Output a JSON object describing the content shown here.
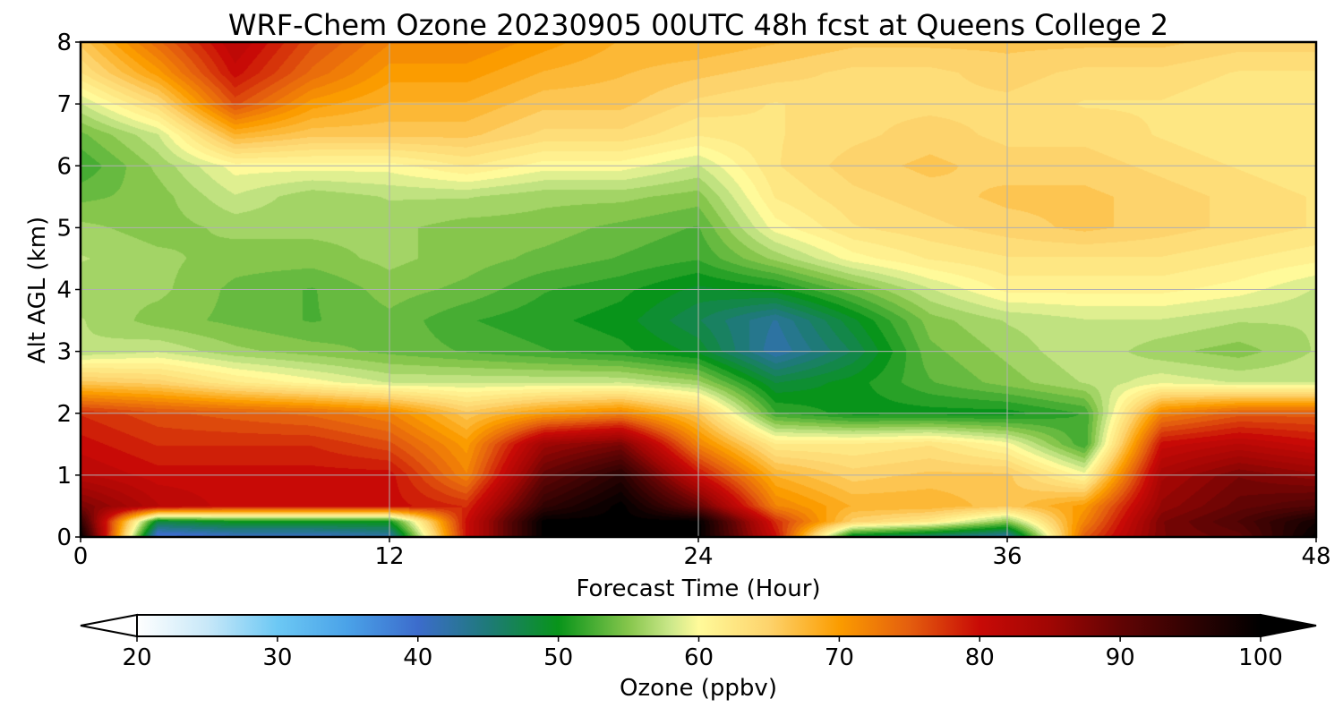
{
  "chart_data": {
    "type": "heatmap",
    "title": "WRF-Chem Ozone  20230905 00UTC 48h fcst at Queens College 2",
    "xlabel": "Forecast Time (Hour)",
    "ylabel": "Alt AGL (km)",
    "xlim": [
      0,
      48
    ],
    "ylim": [
      0,
      8
    ],
    "x_ticks": [
      0,
      12,
      24,
      36,
      48
    ],
    "y_ticks": [
      0,
      1,
      2,
      3,
      4,
      5,
      6,
      7,
      8
    ],
    "grid": true,
    "x": [
      0,
      3,
      6,
      9,
      12,
      15,
      18,
      21,
      24,
      27,
      30,
      33,
      36,
      39,
      42,
      45,
      48
    ],
    "y": [
      0,
      0.25,
      0.5,
      1,
      1.5,
      2,
      2.5,
      3,
      3.5,
      4,
      4.5,
      5,
      5.5,
      6,
      6.5,
      7,
      7.5,
      8
    ],
    "z": [
      [
        100,
        38,
        40,
        40,
        42,
        80,
        100,
        100,
        100,
        80,
        48,
        45,
        42,
        75,
        88,
        90,
        100
      ],
      [
        95,
        48,
        50,
        50,
        50,
        80,
        100,
        100,
        100,
        78,
        65,
        62,
        55,
        72,
        88,
        92,
        98
      ],
      [
        88,
        82,
        80,
        80,
        80,
        78,
        95,
        100,
        90,
        72,
        68,
        68,
        66,
        70,
        86,
        90,
        92
      ],
      [
        82,
        80,
        80,
        80,
        80,
        72,
        90,
        96,
        80,
        68,
        65,
        66,
        66,
        60,
        84,
        88,
        86
      ],
      [
        80,
        78,
        78,
        78,
        76,
        70,
        85,
        88,
        72,
        62,
        62,
        63,
        60,
        52,
        80,
        82,
        80
      ],
      [
        78,
        76,
        75,
        74,
        72,
        66,
        70,
        72,
        66,
        52,
        50,
        50,
        50,
        52,
        72,
        75,
        75
      ],
      [
        66,
        65,
        62,
        60,
        58,
        58,
        58,
        58,
        56,
        48,
        50,
        53,
        55,
        57,
        59,
        58,
        58
      ],
      [
        57,
        58,
        56,
        55,
        54,
        53,
        52,
        51,
        49,
        42,
        47,
        54,
        56,
        58,
        56,
        55,
        57
      ],
      [
        57,
        55,
        54,
        53,
        54,
        52,
        51,
        50,
        47,
        43,
        49,
        55,
        57,
        58,
        58,
        57,
        57
      ],
      [
        56,
        56,
        54,
        53,
        55,
        54,
        52,
        51,
        49,
        50,
        54,
        58,
        61,
        61,
        61,
        60,
        58
      ],
      [
        57,
        56,
        55,
        55,
        56,
        55,
        54,
        53,
        52,
        56,
        60,
        62,
        63,
        63,
        63,
        62,
        61
      ],
      [
        56,
        55,
        56,
        56,
        56,
        55,
        55,
        54,
        53,
        60,
        63,
        64,
        65,
        66,
        65,
        64,
        63
      ],
      [
        54,
        55,
        58,
        56,
        57,
        57,
        56,
        56,
        55,
        62,
        64,
        65,
        66,
        66,
        65,
        64,
        63
      ],
      [
        52,
        56,
        60,
        60,
        60,
        62,
        60,
        60,
        58,
        63,
        65,
        66,
        65,
        65,
        64,
        63,
        62
      ],
      [
        54,
        58,
        68,
        66,
        66,
        66,
        64,
        64,
        62,
        63,
        64,
        65,
        64,
        64,
        63,
        62,
        62
      ],
      [
        58,
        64,
        76,
        70,
        68,
        68,
        66,
        66,
        64,
        63,
        64,
        64,
        64,
        63,
        63,
        62,
        62
      ],
      [
        63,
        70,
        80,
        74,
        70,
        70,
        68,
        67,
        66,
        65,
        64,
        64,
        65,
        64,
        64,
        63,
        63
      ],
      [
        66,
        74,
        82,
        76,
        72,
        72,
        70,
        68,
        68,
        67,
        66,
        66,
        66,
        66,
        66,
        65,
        65
      ]
    ],
    "colorbar": {
      "label": "Ozone  (ppbv)",
      "ticks": [
        20,
        30,
        40,
        50,
        60,
        70,
        80,
        90,
        100
      ],
      "min": 20,
      "max": 100,
      "extend": "both",
      "stops": [
        {
          "v": 20,
          "c": "#ffffff"
        },
        {
          "v": 25,
          "c": "#c8e8f8"
        },
        {
          "v": 30,
          "c": "#6cc8f4"
        },
        {
          "v": 35,
          "c": "#4aa2e8"
        },
        {
          "v": 40,
          "c": "#3c6ccc"
        },
        {
          "v": 45,
          "c": "#1e7a78"
        },
        {
          "v": 50,
          "c": "#08941a"
        },
        {
          "v": 55,
          "c": "#86c64c"
        },
        {
          "v": 58,
          "c": "#cce88a"
        },
        {
          "v": 60,
          "c": "#fffa9a"
        },
        {
          "v": 65,
          "c": "#fdd36c"
        },
        {
          "v": 70,
          "c": "#fb9c00"
        },
        {
          "v": 75,
          "c": "#e45e0e"
        },
        {
          "v": 80,
          "c": "#c80a06"
        },
        {
          "v": 85,
          "c": "#a00604"
        },
        {
          "v": 90,
          "c": "#620404"
        },
        {
          "v": 95,
          "c": "#300202"
        },
        {
          "v": 100,
          "c": "#000000"
        }
      ]
    }
  }
}
